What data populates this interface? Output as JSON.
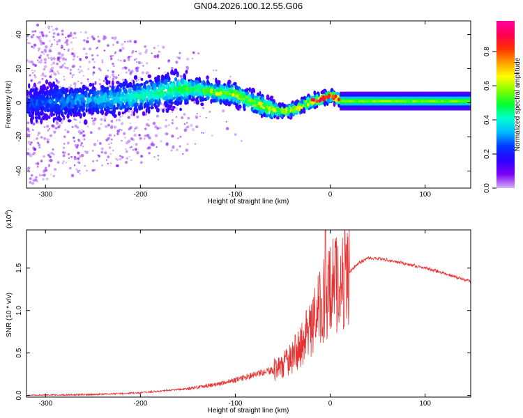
{
  "figure": {
    "title": "GN04.2026.100.12.55.G06"
  },
  "chart_data": [
    {
      "type": "heatmap",
      "xlabel": "Height of straight line (km)",
      "ylabel": "Frequency (Hz)",
      "xlim": [
        -320,
        148
      ],
      "ylim": [
        -50,
        48
      ],
      "xticks": [
        -300,
        -200,
        -100,
        0,
        100
      ],
      "yticks": [
        -40,
        -20,
        0,
        20,
        40
      ],
      "grid": false,
      "colorbar": {
        "label": "Normalized spectral amplitude",
        "range": [
          0,
          0.98
        ],
        "ticks": [
          "0.0",
          "0.2",
          "0.4",
          "0.6",
          "0.8"
        ],
        "colormap": [
          "#d7aef7",
          "#7a00f5",
          "#2b00ff",
          "#0038ff",
          "#00b8ff",
          "#00ffd0",
          "#00ff30",
          "#80ff00",
          "#ffff00",
          "#ffa000",
          "#ff3000",
          "#ff0050",
          "#ff00a0"
        ]
      },
      "ridge": {
        "x": [
          -320,
          -280,
          -240,
          -200,
          -180,
          -160,
          -140,
          -120,
          -100,
          -85,
          -70,
          -60,
          -50,
          -40,
          -30,
          -20,
          -10,
          0,
          10,
          20,
          60,
          100,
          148
        ],
        "y": [
          0,
          1,
          2,
          4,
          6,
          8,
          8,
          6,
          5,
          1,
          -2,
          -4,
          -5,
          -4,
          -2,
          1,
          2,
          4,
          2,
          1,
          1,
          1,
          1
        ]
      }
    },
    {
      "type": "line",
      "xlabel": "Height of straight line (km)",
      "ylabel": "SNR (10 * v/v)",
      "scale_label_base": "(x10",
      "scale_label_exp": "4",
      "scale_label_end": ")",
      "xlim": [
        -320,
        148
      ],
      "ylim": [
        -0.02,
        1.95
      ],
      "xticks": [
        -300,
        -200,
        -100,
        0,
        100
      ],
      "yticks": [
        "0.0",
        "0.5",
        "1.0",
        "1.5"
      ],
      "color": "#e83030",
      "envelope": {
        "x": [
          -320,
          -250,
          -200,
          -150,
          -120,
          -100,
          -80,
          -60,
          -50,
          -40,
          -30,
          -20,
          -10,
          0,
          10,
          20,
          30,
          40,
          60,
          80,
          100,
          120,
          148
        ],
        "y": [
          0.0,
          0.01,
          0.03,
          0.08,
          0.13,
          0.18,
          0.24,
          0.3,
          0.35,
          0.45,
          0.6,
          0.8,
          1.05,
          1.25,
          1.35,
          1.45,
          1.56,
          1.62,
          1.6,
          1.55,
          1.5,
          1.44,
          1.34
        ]
      },
      "peak": {
        "x": -5,
        "y": 1.95
      }
    }
  ]
}
